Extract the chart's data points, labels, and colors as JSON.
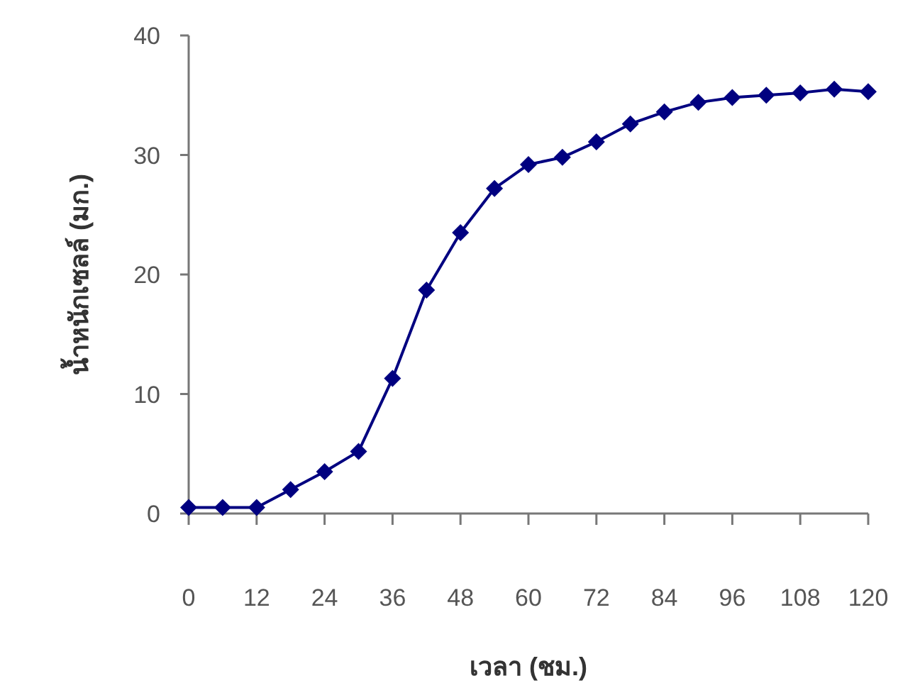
{
  "chart_data": {
    "type": "line",
    "xlabel": "เวลา (ชม.)",
    "ylabel": "น้ำหนักเซลล์ (มก.)",
    "x": [
      0,
      6,
      12,
      18,
      24,
      30,
      36,
      42,
      48,
      54,
      60,
      66,
      72,
      78,
      84,
      90,
      96,
      102,
      108,
      114,
      120
    ],
    "series": [
      {
        "color": "#000080",
        "values": [
          0.5,
          0.5,
          0.5,
          2.0,
          3.5,
          5.2,
          11.3,
          18.7,
          23.5,
          27.2,
          29.2,
          29.8,
          31.1,
          32.6,
          33.6,
          34.4,
          34.8,
          35.0,
          35.2,
          35.5,
          35.3
        ]
      }
    ],
    "xlim": [
      0,
      120
    ],
    "xticks": [
      0,
      12,
      24,
      36,
      48,
      60,
      72,
      84,
      96,
      108,
      120
    ],
    "ylim": [
      0,
      40
    ],
    "yticks": [
      0,
      10,
      20,
      30,
      40
    ],
    "marker": "diamond",
    "line_style": "solid"
  }
}
